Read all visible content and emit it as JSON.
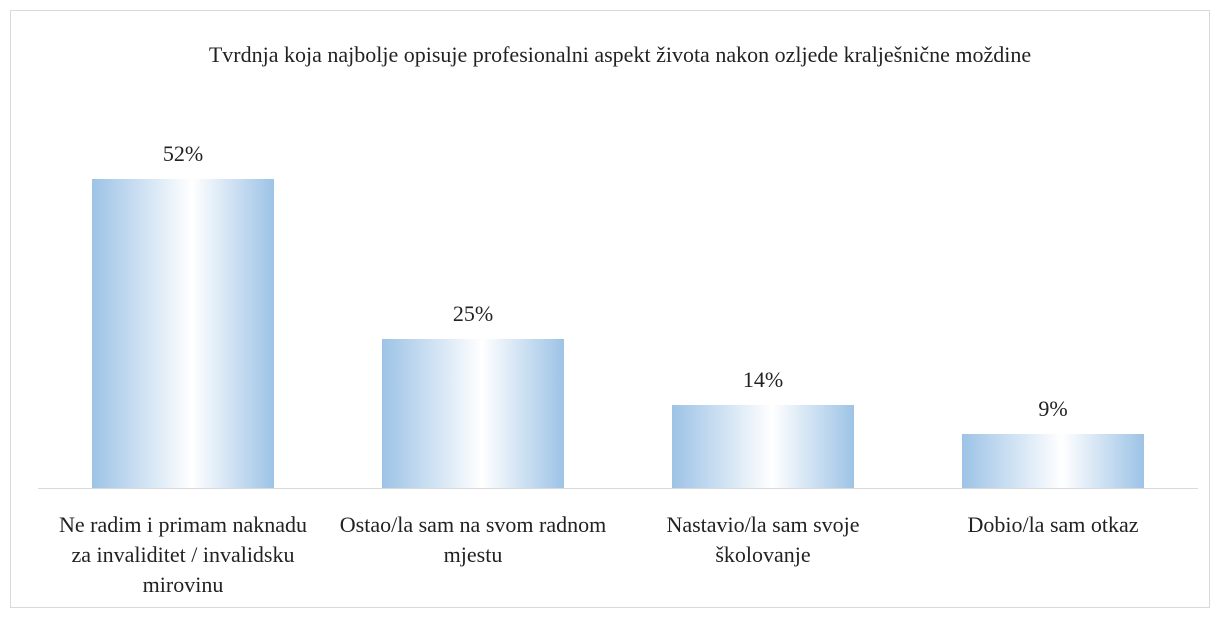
{
  "chart_data": {
    "type": "bar",
    "title": "Tvrdnja koja najbolje opisuje profesionalni aspekt života nakon ozljede kralješnične moždine",
    "categories": [
      "Ne radim i primam naknadu za invaliditet / invalidsku mirovinu",
      "Ostao/la sam na svom radnom mjestu",
      "Nastavio/la sam svoje školovanje",
      "Dobio/la sam otkaz"
    ],
    "values": [
      52,
      25,
      14,
      9
    ],
    "value_labels": [
      "52%",
      "25%",
      "14%",
      "9%"
    ],
    "color": "#9dc3e6"
  }
}
